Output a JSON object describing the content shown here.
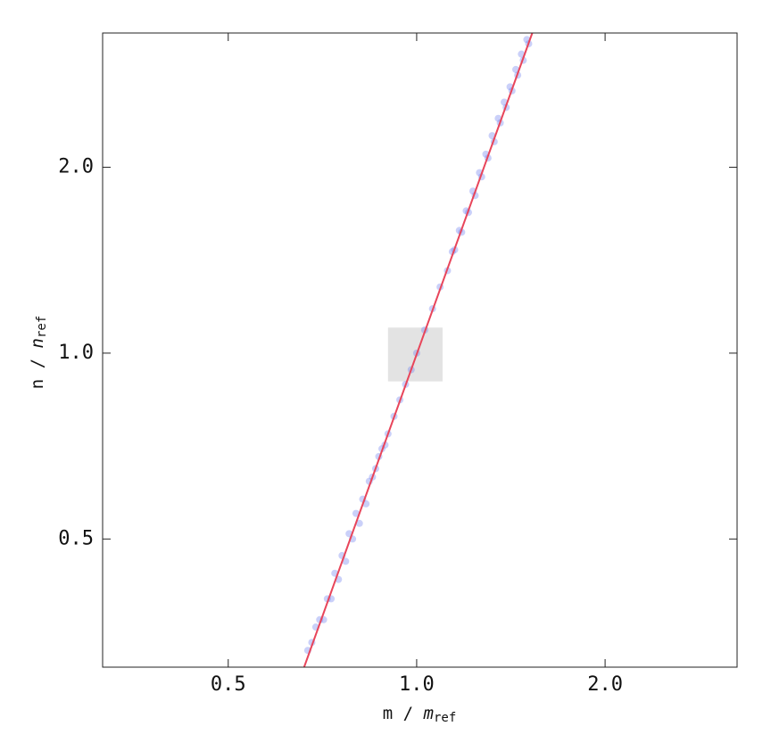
{
  "chart_data": {
    "type": "scatter",
    "x_label": {
      "numerator": "m",
      "denominator": "m",
      "subscript": "ref"
    },
    "y_label": {
      "numerator": "n",
      "denominator": "n",
      "subscript": "ref"
    },
    "log_x": true,
    "log_y": true,
    "xlim": [
      0.315,
      3.25
    ],
    "ylim": [
      0.31,
      3.3
    ],
    "xticks": [
      {
        "value": 0.5,
        "label": "0.5"
      },
      {
        "value": 1,
        "label": "1.0"
      },
      {
        "value": 2,
        "label": "2.0"
      }
    ],
    "yticks": [
      {
        "value": 0.5,
        "label": "0.5"
      },
      {
        "value": 1,
        "label": "1.0"
      },
      {
        "value": 2,
        "label": "2.0"
      }
    ],
    "highlight": {
      "x": [
        0.9,
        1.1
      ],
      "y": [
        0.9,
        1.1
      ],
      "color": "#e3e3e3"
    },
    "series": [
      {
        "kind": "scatter",
        "color": "#6677ee",
        "x": [
          0.67,
          0.68,
          0.69,
          0.7,
          0.71,
          0.72,
          0.73,
          0.74,
          0.75,
          0.76,
          0.77,
          0.78,
          0.79,
          0.8,
          0.81,
          0.82,
          0.83,
          0.84,
          0.85,
          0.86,
          0.87,
          0.88,
          0.89,
          0.9,
          0.92,
          0.94,
          0.96,
          0.98,
          1.0,
          1.03,
          1.06,
          1.09,
          1.12,
          1.14,
          1.15,
          1.17,
          1.18,
          1.2,
          1.21,
          1.23,
          1.24,
          1.26,
          1.27,
          1.29,
          1.3,
          1.32,
          1.33,
          1.35,
          1.36,
          1.38,
          1.39,
          1.41,
          1.42,
          1.44,
          1.45,
          1.47,
          1.48,
          1.5,
          1.51
        ],
        "values": [
          0.33,
          0.34,
          0.36,
          0.37,
          0.37,
          0.4,
          0.4,
          0.44,
          0.43,
          0.47,
          0.46,
          0.51,
          0.5,
          0.55,
          0.53,
          0.58,
          0.57,
          0.62,
          0.63,
          0.65,
          0.68,
          0.7,
          0.71,
          0.74,
          0.79,
          0.84,
          0.89,
          0.94,
          1.0,
          1.09,
          1.18,
          1.28,
          1.36,
          1.46,
          1.47,
          1.58,
          1.57,
          1.7,
          1.69,
          1.83,
          1.8,
          1.96,
          1.93,
          2.1,
          2.07,
          2.25,
          2.2,
          2.4,
          2.36,
          2.55,
          2.5,
          2.7,
          2.66,
          2.88,
          2.82,
          3.05,
          2.98,
          3.22,
          3.17
        ]
      },
      {
        "kind": "line",
        "color": "#e8455a",
        "x": [
          0.661,
          1.53
        ],
        "values": [
          0.31,
          3.3
        ]
      }
    ]
  }
}
